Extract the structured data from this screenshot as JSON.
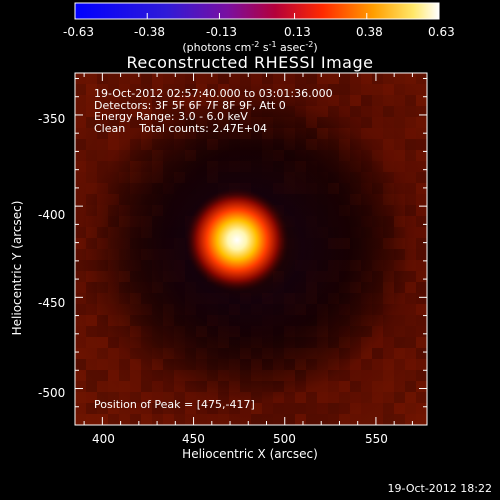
{
  "colorbar": {
    "tick_labels": [
      "-0.63",
      "-0.38",
      "-0.13",
      "0.13",
      "0.38",
      "0.63"
    ],
    "units_text": "(photons cm",
    "units_exp1": "-2",
    "units_mid1": " s",
    "units_exp2": "-1",
    "units_mid2": " asec",
    "units_exp3": "-2",
    "units_end": ")"
  },
  "plot": {
    "title": "Reconstructed RHESSI Image",
    "xlabel": "Heliocentric X (arcsec)",
    "ylabel": "Heliocentric Y (arcsec)",
    "x_ticks": [
      "400",
      "450",
      "500",
      "550"
    ],
    "y_ticks": [
      "-350",
      "-400",
      "-450",
      "-500"
    ],
    "info_lines": [
      "19-Oct-2012 02:57:40.000 to 03:01:36.000",
      "Detectors: 3F 5F 6F 7F 8F 9F, Att 0",
      "Energy Range: 3.0 - 6.0 keV",
      "Clean    Total counts: 2.47E+04"
    ],
    "peak_text": "Position of Peak = [475,-417]"
  },
  "footer": {
    "timestamp": "19-Oct-2012 18:22"
  },
  "chart_data": {
    "type": "heatmap",
    "title": "Reconstructed RHESSI Image",
    "xlabel": "Heliocentric X (arcsec)",
    "ylabel": "Heliocentric Y (arcsec)",
    "xlim": [
      385,
      578
    ],
    "ylim": [
      -520,
      -327
    ],
    "x_ticks": [
      400,
      450,
      500,
      550
    ],
    "y_ticks": [
      -350,
      -400,
      -450,
      -500
    ],
    "colorbar_range": [
      -0.63,
      0.63
    ],
    "colorbar_ticks": [
      -0.63,
      -0.38,
      -0.13,
      0.13,
      0.38,
      0.63
    ],
    "peak_position": [
      475,
      -417
    ]
  }
}
